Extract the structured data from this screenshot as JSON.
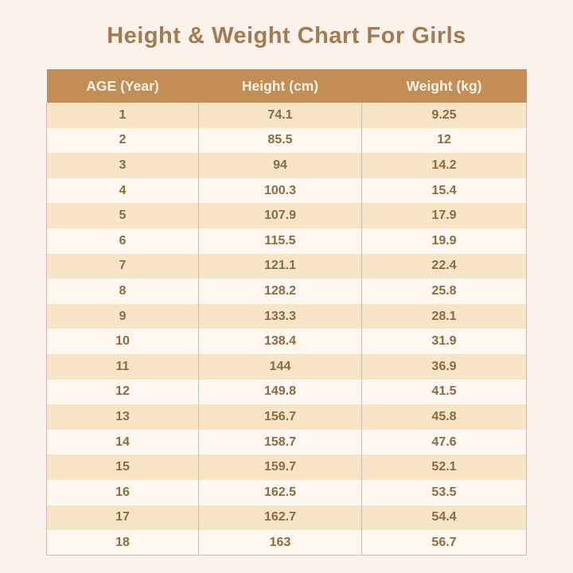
{
  "page": {
    "background_color": "#FBF3EB",
    "title_color": "#A27B4F"
  },
  "title": "Height & Weight Chart For Girls",
  "table_style": {
    "header_bg": "#C28E55",
    "header_text_color": "#FBF3E8",
    "row_odd_bg": "#F8E4C6",
    "row_even_bg": "#FEF8F1",
    "cell_text_color": "#8D6A41",
    "border_color": "#C8BEB0"
  },
  "chart_data": {
    "type": "table",
    "title": "Height & Weight Chart For Girls",
    "columns": [
      "AGE (Year)",
      "Height (cm)",
      "Weight (kg)"
    ],
    "rows": [
      [
        "1",
        "74.1",
        "9.25"
      ],
      [
        "2",
        "85.5",
        "12"
      ],
      [
        "3",
        "94",
        "14.2"
      ],
      [
        "4",
        "100.3",
        "15.4"
      ],
      [
        "5",
        "107.9",
        "17.9"
      ],
      [
        "6",
        "115.5",
        "19.9"
      ],
      [
        "7",
        "121.1",
        "22.4"
      ],
      [
        "8",
        "128.2",
        "25.8"
      ],
      [
        "9",
        "133.3",
        "28.1"
      ],
      [
        "10",
        "138.4",
        "31.9"
      ],
      [
        "11",
        "144",
        "36.9"
      ],
      [
        "12",
        "149.8",
        "41.5"
      ],
      [
        "13",
        "156.7",
        "45.8"
      ],
      [
        "14",
        "158.7",
        "47.6"
      ],
      [
        "15",
        "159.7",
        "52.1"
      ],
      [
        "16",
        "162.5",
        "53.5"
      ],
      [
        "17",
        "162.7",
        "54.4"
      ],
      [
        "18",
        "163",
        "56.7"
      ]
    ]
  }
}
